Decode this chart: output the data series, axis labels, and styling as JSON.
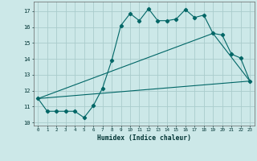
{
  "xlabel": "Humidex (Indice chaleur)",
  "background_color": "#cce8e8",
  "grid_color": "#aacccc",
  "line_color": "#006666",
  "xlim": [
    -0.5,
    23.5
  ],
  "ylim": [
    9.8,
    17.6
  ],
  "yticks": [
    10,
    11,
    12,
    13,
    14,
    15,
    16,
    17
  ],
  "xticks": [
    0,
    1,
    2,
    3,
    4,
    5,
    6,
    7,
    8,
    9,
    10,
    11,
    12,
    13,
    14,
    15,
    16,
    17,
    18,
    19,
    20,
    21,
    22,
    23
  ],
  "line1_x": [
    0,
    1,
    2,
    3,
    4,
    5,
    6,
    7,
    8,
    9,
    10,
    11,
    12,
    13,
    14,
    15,
    16,
    17,
    18,
    19,
    20,
    21,
    22,
    23
  ],
  "line1_y": [
    11.5,
    10.7,
    10.7,
    10.7,
    10.7,
    10.3,
    11.05,
    12.15,
    13.9,
    16.1,
    16.85,
    16.4,
    17.15,
    16.4,
    16.4,
    16.5,
    17.1,
    16.6,
    16.75,
    15.6,
    15.5,
    14.3,
    14.05,
    12.6
  ],
  "line2_x": [
    0,
    23
  ],
  "line2_y": [
    11.5,
    12.6
  ],
  "line3_x": [
    0,
    19,
    23
  ],
  "line3_y": [
    11.5,
    15.6,
    12.6
  ]
}
